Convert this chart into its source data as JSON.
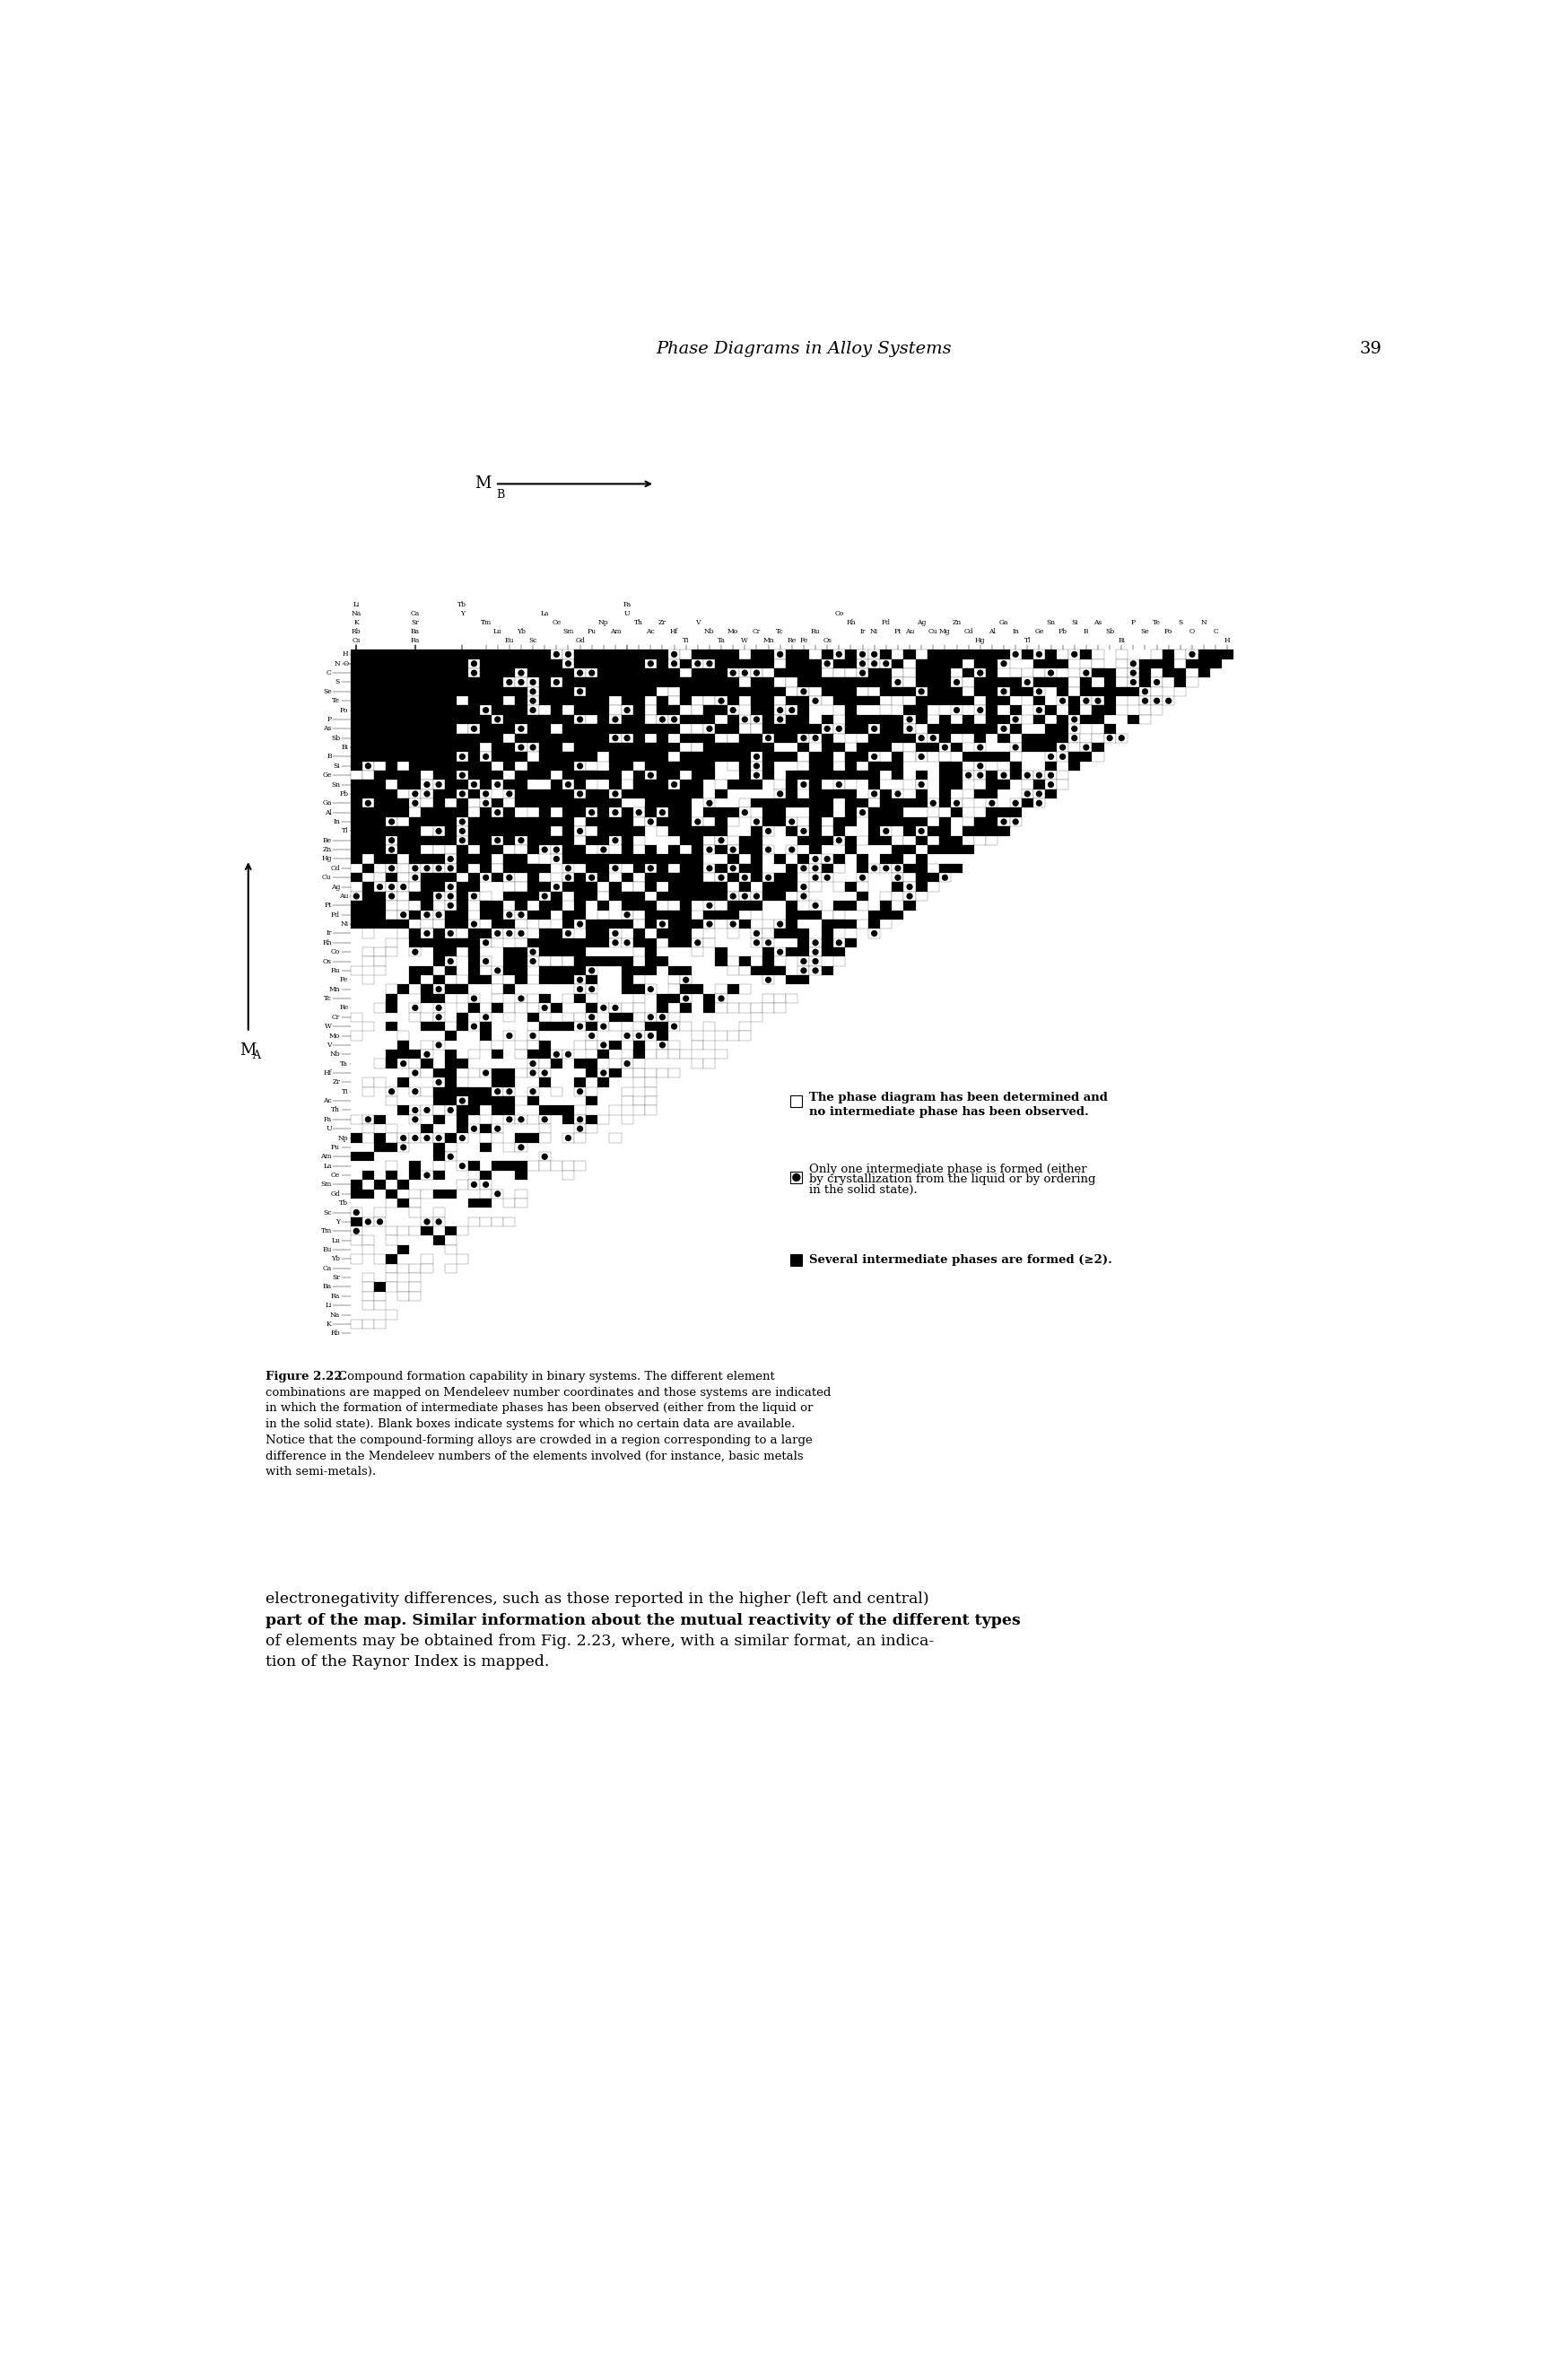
{
  "title_header": "Phase Diagrams in Alloy Systems",
  "page_number": "39",
  "figure_label": "Figure 2.22.",
  "figure_caption1": "  Compound formation capability in binary systems. The different element",
  "figure_caption2": "combinations are mapped on Mendeleev number coordinates and those systems are indicated",
  "figure_caption3": "in which the formation of intermediate phases has been observed (either from the liquid or",
  "figure_caption4": "in the solid state). Blank boxes indicate systems for which no certain data are available.",
  "figure_caption5": "Notice that the compound-forming alloys are crowded in a region corresponding to a large",
  "figure_caption6": "difference in the Mendeleev numbers of the elements involved (for instance, basic metals",
  "figure_caption7": "with semi-metals).",
  "legend_item1": "The phase diagram has been determined and\nno intermediate phase has been observed.",
  "legend_item2": "Only one intermediate phase is formed (either\nby crystallization from the liquid or by ordering\nin the solid state).",
  "legend_item3": "Several intermediate phases are formed (≥2).",
  "body_line1": "electronegativity differences, such as those reported in the higher (left and central)",
  "body_line2": "part of the map. Similar information about the mutual reactivity of the different types",
  "body_line3": "of elements may be obtained from Fig. 2.23, where, with a similar format, an indica-",
  "body_line4": "tion of the Raynor Index is mapped.",
  "MB_label": "M",
  "MB_sub": "B",
  "MA_label": "M",
  "MA_sub": "A",
  "x_elems": [
    "Li",
    "Na",
    "K",
    "Rb",
    "Cs",
    "Ca",
    "Sr",
    "Ba",
    "Ra",
    "Y",
    "Tb",
    "Tm",
    "Lu",
    "Eu",
    "Yb",
    "Sc",
    "La",
    "Ce",
    "Sm",
    "Gd",
    "Pu",
    "Np",
    "Am",
    "U",
    "Th",
    "Ac",
    "Zr",
    "Hf",
    "Ti",
    "V",
    "Nb",
    "Ta",
    "Mo",
    "W",
    "Cr",
    "Mn",
    "Tc",
    "Re",
    "Fe",
    "Ru",
    "Os",
    "Co",
    "Rh",
    "Ir",
    "Ni",
    "Pd",
    "Pt",
    "Au",
    "Ag",
    "Cu",
    "Mg",
    "Zn",
    "Cd",
    "Hg",
    "Al",
    "Ga",
    "In",
    "Tl",
    "Ge",
    "Sn",
    "Pb",
    "Si",
    "B",
    "As",
    "Sb",
    "Bi",
    "P",
    "Se",
    "Te",
    "Po",
    "S",
    "O",
    "N",
    "C",
    "H"
  ],
  "y_elems": [
    "H",
    "N",
    "O",
    "C",
    "S",
    "Se",
    "Te",
    "Po",
    "P",
    "As",
    "Sb",
    "Bi",
    "B",
    "Si",
    "Ge",
    "Sn",
    "Pb",
    "Ga",
    "Al",
    "In",
    "Tl",
    "Be",
    "Zn",
    "Hg",
    "Cd",
    "Cu",
    "Ag",
    "Au",
    "Pt",
    "Pd",
    "Ni",
    "Ir",
    "Rh",
    "Co",
    "Os",
    "Ru",
    "Fe",
    "Mn",
    "Tc",
    "Re",
    "Cr",
    "W",
    "Mo",
    "V",
    "Nb",
    "Ta",
    "Hf",
    "Zr",
    "Ti",
    "Ac",
    "Th",
    "Pa",
    "U",
    "Np",
    "Pu",
    "Am",
    "La",
    "Ce",
    "Sm",
    "Gd",
    "Tb",
    "Sc",
    "Y",
    "Tm",
    "Lu",
    "Eu",
    "Yb",
    "Ca",
    "Sr",
    "Ba",
    "Ra",
    "Li",
    "Na",
    "K",
    "Rb"
  ],
  "background_color": "#ffffff"
}
